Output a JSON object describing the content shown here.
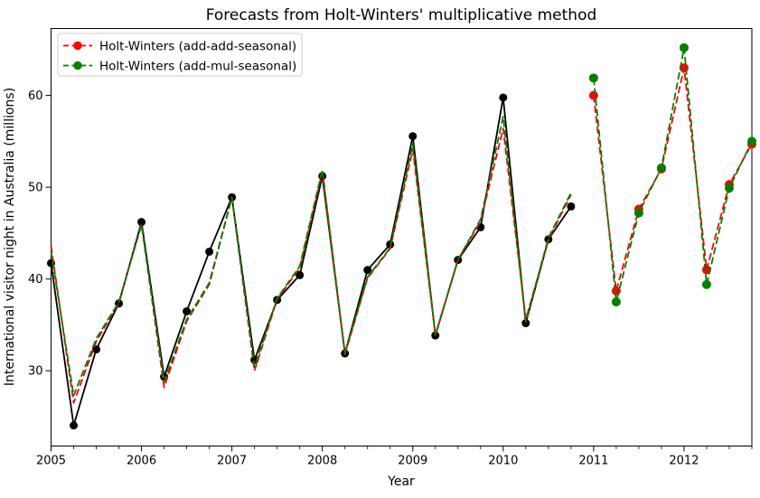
{
  "figure": {
    "title": "Forecasts from Holt-Winters' multiplicative method",
    "xlabel": "Year",
    "ylabel": "International visitor night in Australia (millions)"
  },
  "chart_data": {
    "type": "line",
    "title": "Forecasts from Holt-Winters' multiplicative method",
    "xlabel": "Year",
    "ylabel": "International visitor night in Australia (millions)",
    "xlim": [
      2005.0,
      2012.75
    ],
    "ylim": [
      21.8,
      67.3
    ],
    "x_major_ticks": [
      2005,
      2006,
      2007,
      2008,
      2009,
      2010,
      2011,
      2012
    ],
    "x_minor_tick_step": 0.25,
    "y_ticks": [
      30,
      40,
      50,
      60
    ],
    "grid": false,
    "legend": {
      "position": "upper-left",
      "entries": [
        {
          "label": "Holt-Winters (add-add-seasonal)",
          "color": "#ff0000"
        },
        {
          "label": "Holt-Winters (add-mul-seasonal)",
          "color": "#008000"
        }
      ]
    },
    "series": [
      {
        "name": "observed-data",
        "color": "#000000",
        "line": "solid",
        "marker": "o",
        "x": [
          2005.0,
          2005.25,
          2005.5,
          2005.75,
          2006.0,
          2006.25,
          2006.5,
          2006.75,
          2007.0,
          2007.25,
          2007.5,
          2007.75,
          2008.0,
          2008.25,
          2008.5,
          2008.75,
          2009.0,
          2009.25,
          2009.5,
          2009.75,
          2010.0,
          2010.25,
          2010.5,
          2010.75
        ],
        "y": [
          41.73,
          24.04,
          32.33,
          37.33,
          46.21,
          29.35,
          36.48,
          42.98,
          48.9,
          31.18,
          37.72,
          40.42,
          51.21,
          31.89,
          40.98,
          43.77,
          55.56,
          33.85,
          42.08,
          45.64,
          59.77,
          35.19,
          44.32,
          47.91
        ]
      },
      {
        "name": "fitted-holt-winters-add-add",
        "color": "#ff0000",
        "line": "dashed",
        "marker": null,
        "x": [
          2005.0,
          2005.25,
          2005.5,
          2005.75,
          2006.0,
          2006.25,
          2006.5,
          2006.75,
          2007.0,
          2007.25,
          2007.5,
          2007.75,
          2008.0,
          2008.25,
          2008.5,
          2008.75,
          2009.0,
          2009.25,
          2009.5,
          2009.75,
          2010.0,
          2010.25,
          2010.5,
          2010.75
        ],
        "y": [
          43.6,
          26.5,
          33.2,
          37.4,
          46.0,
          28.2,
          35.4,
          39.4,
          48.9,
          30.0,
          37.8,
          41.2,
          51.7,
          31.8,
          40.1,
          43.3,
          54.1,
          33.9,
          42.1,
          46.3,
          56.4,
          35.6,
          44.3,
          49.2
        ]
      },
      {
        "name": "fitted-holt-winters-add-mul",
        "color": "#008000",
        "line": "dashed",
        "marker": null,
        "x": [
          2005.0,
          2005.25,
          2005.5,
          2005.75,
          2006.0,
          2006.25,
          2006.5,
          2006.75,
          2007.0,
          2007.25,
          2007.5,
          2007.75,
          2008.0,
          2008.25,
          2008.5,
          2008.75,
          2009.0,
          2009.25,
          2009.5,
          2009.75,
          2010.0,
          2010.25,
          2010.5,
          2010.75
        ],
        "y": [
          43.0,
          27.3,
          33.5,
          37.5,
          45.9,
          28.8,
          35.6,
          39.6,
          48.9,
          30.4,
          37.9,
          41.4,
          51.9,
          31.9,
          40.2,
          43.4,
          54.7,
          33.9,
          42.1,
          46.5,
          57.7,
          35.3,
          44.5,
          49.4
        ]
      },
      {
        "name": "forecast-holt-winters-add-add",
        "color": "#ff0000",
        "line": "dashed",
        "marker": "o",
        "x": [
          2011.0,
          2011.25,
          2011.5,
          2011.75,
          2012.0,
          2012.25,
          2012.5,
          2012.75
        ],
        "y": [
          60.0,
          38.7,
          47.6,
          52.0,
          63.0,
          41.0,
          50.3,
          54.7
        ]
      },
      {
        "name": "forecast-holt-winters-add-mul",
        "color": "#008000",
        "line": "dashed",
        "marker": "o",
        "x": [
          2011.0,
          2011.25,
          2011.5,
          2011.75,
          2012.0,
          2012.25,
          2012.5,
          2012.75
        ],
        "y": [
          61.9,
          37.5,
          47.2,
          52.1,
          65.2,
          39.4,
          49.9,
          55.0
        ]
      }
    ]
  }
}
